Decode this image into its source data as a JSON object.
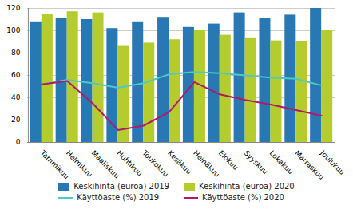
{
  "chart_data": {
    "type": "bar",
    "categories": [
      "Tammikuu",
      "Helmikuu",
      "Maaliskuu",
      "Huhtikuu",
      "Toukokuu",
      "Kesäkuu",
      "Heinäkuu",
      "Elokuu",
      "Syyskuu",
      "Lokakuu",
      "Marraskuu",
      "Joulukuu"
    ],
    "series": [
      {
        "name": "Keskihinta (euroa) 2019",
        "type": "bar",
        "color": "#2878b4",
        "values": [
          108,
          111,
          110,
          102,
          108,
          112,
          103,
          106,
          116,
          111,
          114,
          120
        ]
      },
      {
        "name": "Keskihinta (euroa) 2020",
        "type": "bar",
        "color": "#b5cc2e",
        "values": [
          115,
          117,
          116,
          86,
          89,
          92,
          100,
          96,
          93,
          91,
          90,
          100
        ]
      },
      {
        "name": "Käyttöaste (%) 2019",
        "type": "line",
        "color": "#4ec8c8",
        "values": [
          52,
          56,
          53,
          49,
          53,
          61,
          63,
          62,
          60,
          58,
          57,
          51
        ]
      },
      {
        "name": "Käyttöaste (%) 2020",
        "type": "line",
        "color": "#b0196e",
        "values": [
          52,
          55,
          35,
          11,
          15,
          27,
          54,
          43,
          38,
          34,
          29,
          24
        ]
      }
    ],
    "ylim": [
      0,
      120
    ],
    "yticks": [
      0,
      20,
      40,
      60,
      80,
      100,
      120
    ],
    "grid": true,
    "legend": "bottom"
  }
}
